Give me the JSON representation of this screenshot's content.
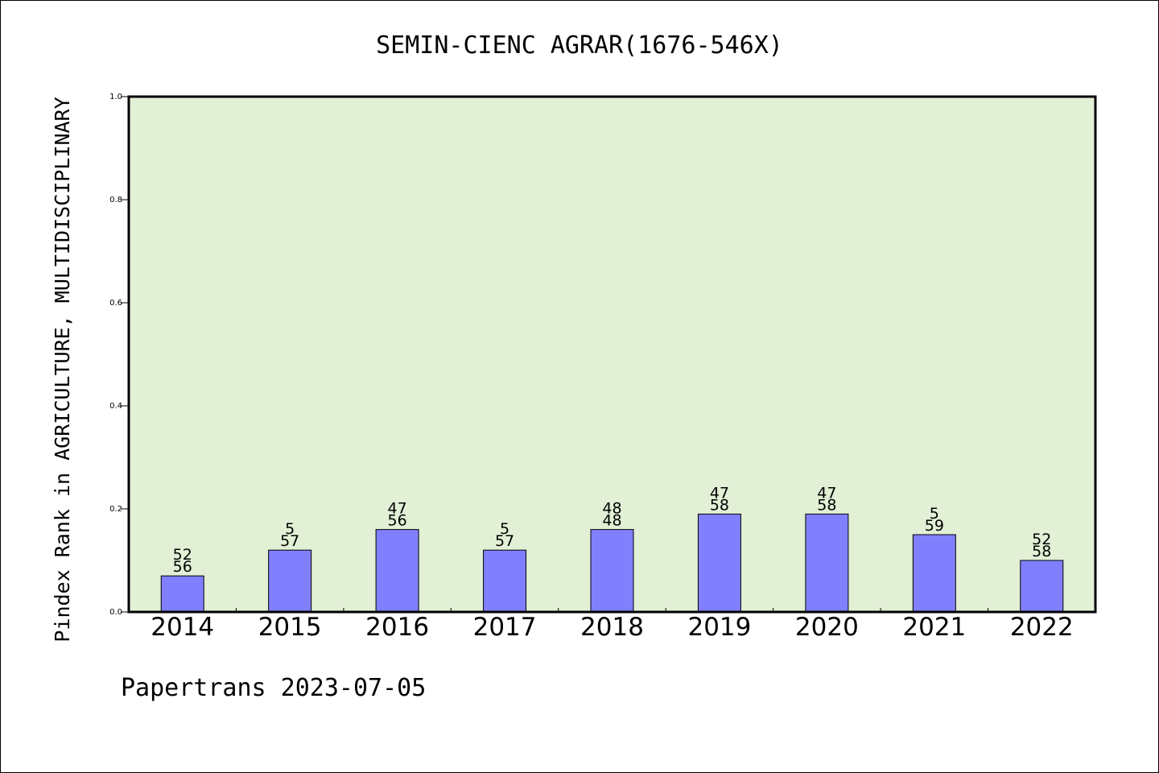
{
  "chart_data": {
    "type": "bar",
    "title": "SEMIN-CIENC AGRAR(1676-546X)",
    "ylabel": "Pindex Rank in AGRICULTURE, MULTIDISCIPLINARY",
    "xlabel": "",
    "ylim": [
      0,
      1.0
    ],
    "yticks": [
      "0.0",
      "0.2",
      "0.4",
      "0.6",
      "0.8",
      "1.0"
    ],
    "categories": [
      "2014",
      "2015",
      "2016",
      "2017",
      "2018",
      "2019",
      "2020",
      "2021",
      "2022"
    ],
    "values": [
      0.07,
      0.12,
      0.16,
      0.12,
      0.16,
      0.19,
      0.19,
      0.15,
      0.1
    ],
    "label_top": [
      "52",
      "5",
      "47",
      "5",
      "48",
      "47",
      "47",
      "5",
      "52"
    ],
    "label_bottom": [
      "56",
      "57",
      "56",
      "57",
      "48",
      "58",
      "58",
      "59",
      "58"
    ],
    "grid": false,
    "colors": {
      "bar": "#8080ff",
      "plot_background": "#e2f0d6"
    }
  },
  "footer": {
    "text": "Papertrans 2023-07-05"
  }
}
